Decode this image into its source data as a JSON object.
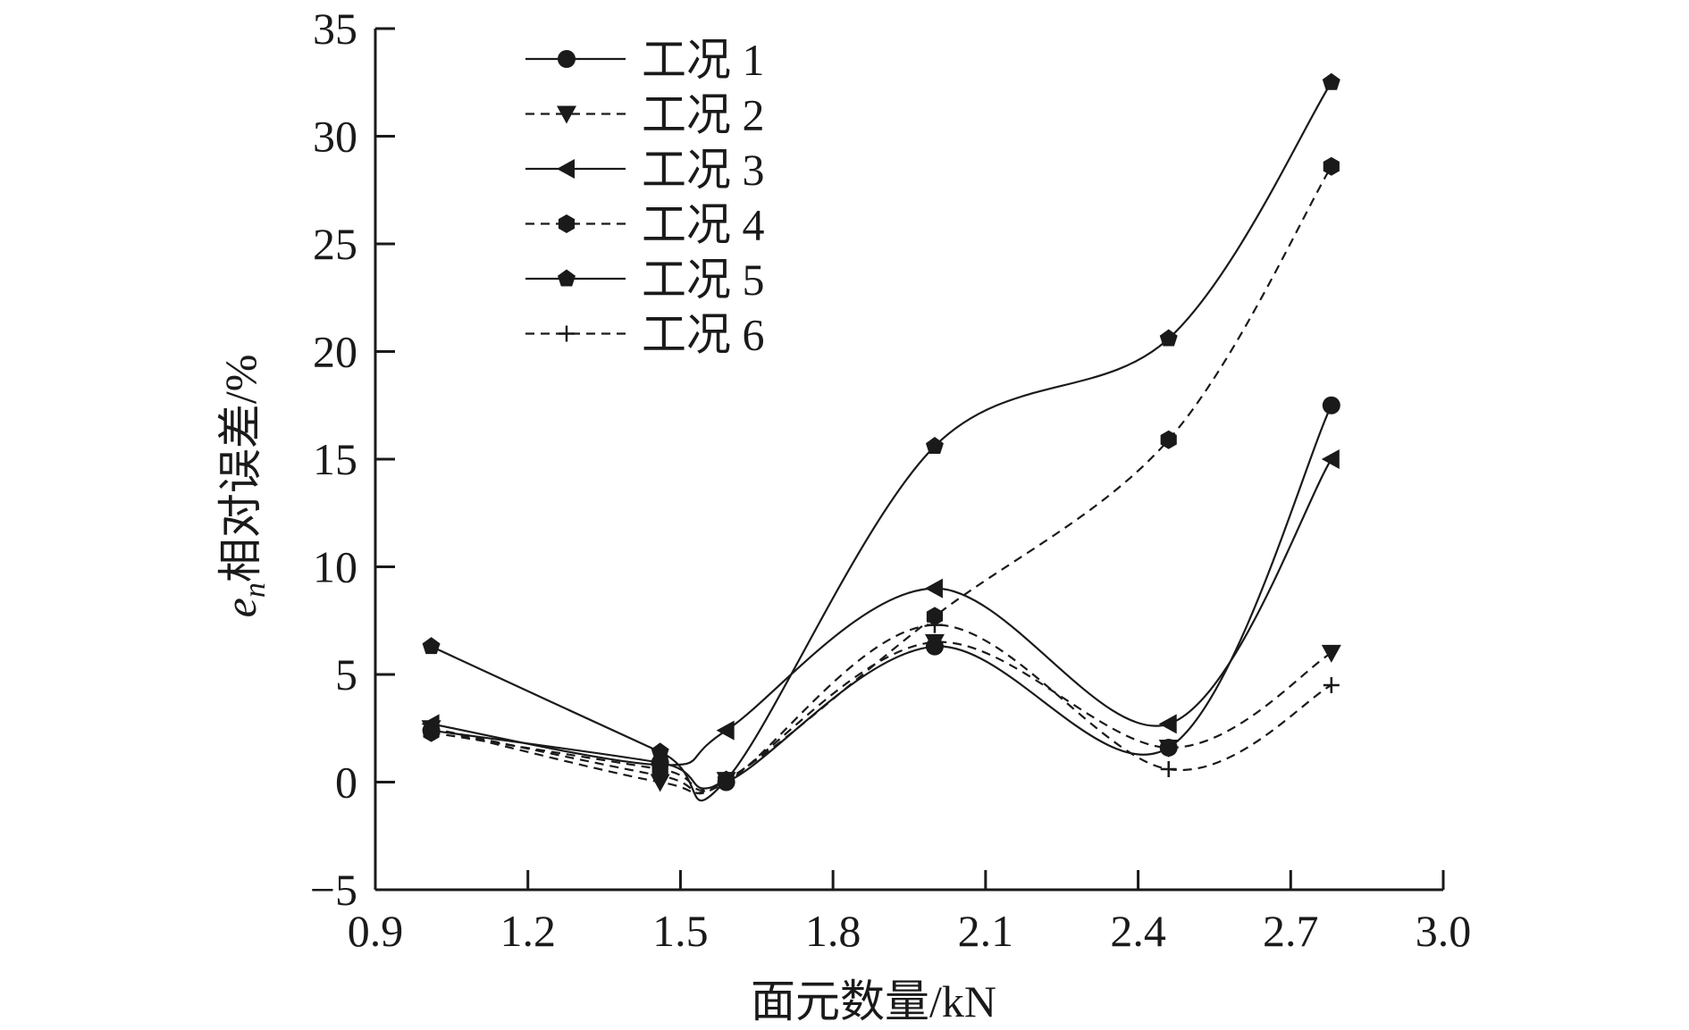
{
  "chart_data": {
    "type": "line",
    "title": "",
    "xlabel": "面元数量/kN",
    "ylabel_symbol": "e",
    "ylabel_subscript": "n",
    "ylabel_text": "相对误差/%",
    "xlim": [
      0.9,
      3.0
    ],
    "ylim": [
      -5,
      35
    ],
    "xticks": [
      "0.9",
      "1.2",
      "1.5",
      "1.8",
      "2.1",
      "2.4",
      "2.7",
      "3.0"
    ],
    "yticks": [
      "35",
      "30",
      "25",
      "20",
      "15",
      "10",
      "5",
      "0",
      "−5"
    ],
    "x": [
      1.01,
      1.46,
      1.59,
      2.0,
      2.46,
      2.78
    ],
    "grid": false,
    "legend_position": "top-left",
    "series": [
      {
        "name": "工况 1",
        "marker": "circle",
        "dashed": false,
        "values": [
          2.4,
          0.9,
          0.0,
          6.3,
          1.6,
          17.5
        ]
      },
      {
        "name": "工况 2",
        "marker": "triangle-down",
        "dashed": true,
        "values": [
          2.5,
          0.0,
          0.1,
          6.5,
          1.6,
          6.0
        ]
      },
      {
        "name": "工况 3",
        "marker": "triangle-left",
        "dashed": false,
        "values": [
          2.7,
          0.8,
          2.4,
          9.0,
          2.7,
          15.0
        ]
      },
      {
        "name": "工况 4",
        "marker": "hexagon",
        "dashed": true,
        "values": [
          2.3,
          0.6,
          0.1,
          7.7,
          15.9,
          28.6
        ]
      },
      {
        "name": "工况 5",
        "marker": "pentagon",
        "dashed": false,
        "values": [
          6.3,
          1.4,
          0.1,
          15.6,
          20.6,
          32.5
        ]
      },
      {
        "name": "工况 6",
        "marker": "plus",
        "dashed": true,
        "values": [
          2.5,
          0.3,
          0.0,
          7.3,
          0.6,
          4.5
        ]
      }
    ]
  }
}
